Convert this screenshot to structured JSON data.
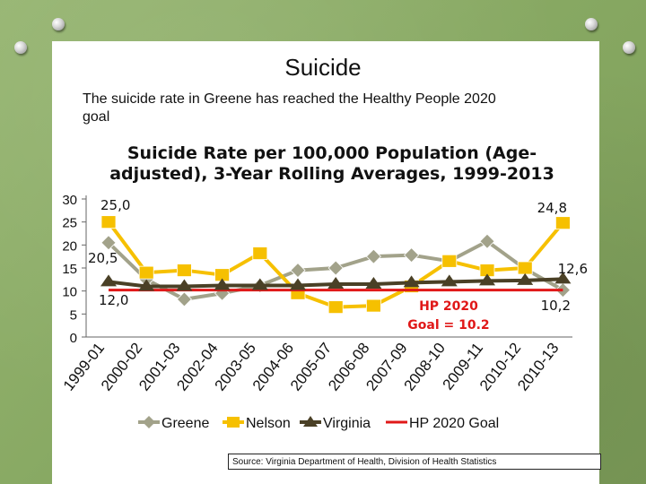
{
  "slide": {
    "title": "Suicide",
    "subtitle": "The suicide rate in Greene has reached the Healthy People 2020 goal",
    "source": "Source: Virginia Department of Health, Division of Health Statistics"
  },
  "colors": {
    "greene": "#a2a28a",
    "nelson": "#f6c000",
    "virginia": "#4a4026",
    "goal": "#e01818",
    "background": "#8fae6a"
  },
  "chart_data": {
    "type": "line",
    "title": "Suicide Rate per 100,000 Population (Age-adjusted), 3-Year Rolling Averages, 1999-2013",
    "categories": [
      "1999-01",
      "2000-02",
      "2001-03",
      "2002-04",
      "2003-05",
      "2004-06",
      "2005-07",
      "2006-08",
      "2007-09",
      "2008-10",
      "2009-11",
      "2010-12",
      "2010-13"
    ],
    "ylim": [
      0,
      30
    ],
    "yticks": [
      "30",
      "25",
      "20",
      "15",
      "10",
      "5",
      "0"
    ],
    "series": [
      {
        "name": "Greene",
        "values": [
          20.5,
          12.5,
          8.2,
          9.5,
          11.2,
          14.5,
          15.0,
          17.5,
          17.8,
          16.5,
          20.8,
          14.8,
          10.2
        ]
      },
      {
        "name": "Nelson",
        "values": [
          25.0,
          14.0,
          14.5,
          13.5,
          18.2,
          9.5,
          6.5,
          6.8,
          11.0,
          16.5,
          14.5,
          15.0,
          24.8
        ]
      },
      {
        "name": "Virginia",
        "values": [
          12.0,
          11.0,
          11.0,
          11.2,
          11.2,
          11.2,
          11.5,
          11.5,
          11.8,
          12.0,
          12.2,
          12.3,
          12.6
        ]
      },
      {
        "name": "HP 2020 Goal",
        "values": [
          10.2,
          10.2,
          10.2,
          10.2,
          10.2,
          10.2,
          10.2,
          10.2,
          10.2,
          10.2,
          10.2,
          10.2,
          10.2
        ]
      }
    ],
    "data_labels": [
      "25,0",
      "20,5",
      "12,0",
      "24,8",
      "12,6",
      "10,2"
    ],
    "annotation": "HP 2020 Goal = 10.2",
    "legend_position": "bottom",
    "grid": false
  }
}
